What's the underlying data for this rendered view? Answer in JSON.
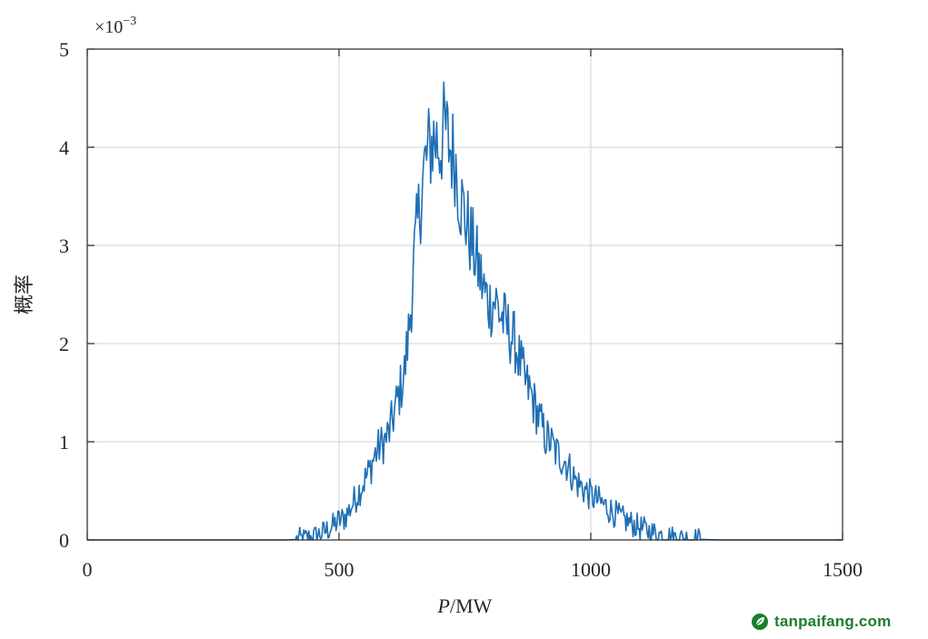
{
  "chart_data": {
    "type": "line",
    "title": "",
    "xlabel_var": "P",
    "xlabel_unit": "/MW",
    "ylabel": "概率",
    "y_multiplier_base": "×10",
    "y_multiplier_exp": "−3",
    "xlim": [
      0,
      1500
    ],
    "ylim": [
      0,
      5
    ],
    "x_ticks": [
      "0",
      "500",
      "1000",
      "1500"
    ],
    "y_ticks": [
      "0",
      "1",
      "2",
      "3",
      "4",
      "5"
    ],
    "grid": true,
    "legend": "none",
    "series": [
      {
        "color": "#1f6fb5",
        "x": [
          0,
          250,
          300,
          400,
          430,
          450,
          470,
          490,
          500,
          510,
          520,
          530,
          540,
          550,
          560,
          570,
          580,
          590,
          600,
          610,
          620,
          630,
          640,
          650,
          660,
          670,
          680,
          690,
          700,
          710,
          720,
          730,
          740,
          750,
          760,
          770,
          780,
          790,
          800,
          810,
          820,
          830,
          840,
          850,
          860,
          870,
          880,
          890,
          900,
          910,
          920,
          930,
          940,
          950,
          960,
          970,
          980,
          990,
          1000,
          1020,
          1040,
          1060,
          1080,
          1100,
          1120,
          1140,
          1160,
          1180,
          1200,
          1220,
          1250,
          1300,
          1350,
          1500
        ],
        "y": [
          0,
          0,
          0,
          0,
          0.01,
          0.03,
          0.08,
          0.15,
          0.2,
          0.22,
          0.3,
          0.4,
          0.5,
          0.6,
          0.7,
          0.85,
          0.95,
          1.0,
          1.1,
          1.3,
          1.5,
          1.7,
          2.2,
          2.9,
          3.4,
          3.8,
          4.0,
          4.1,
          4.0,
          4.2,
          4.0,
          3.9,
          3.5,
          3.3,
          3.1,
          2.9,
          2.7,
          2.5,
          2.4,
          2.45,
          2.3,
          2.2,
          2.1,
          2.0,
          1.8,
          1.6,
          1.5,
          1.35,
          1.2,
          1.05,
          1.0,
          0.9,
          0.85,
          0.8,
          0.7,
          0.6,
          0.55,
          0.5,
          0.45,
          0.38,
          0.3,
          0.22,
          0.17,
          0.12,
          0.08,
          0.05,
          0.03,
          0.015,
          0.01,
          0.005,
          0,
          0,
          0,
          0
        ]
      }
    ]
  },
  "watermark": {
    "text": "tanpaifang.com",
    "color": "#1a7f2b"
  }
}
